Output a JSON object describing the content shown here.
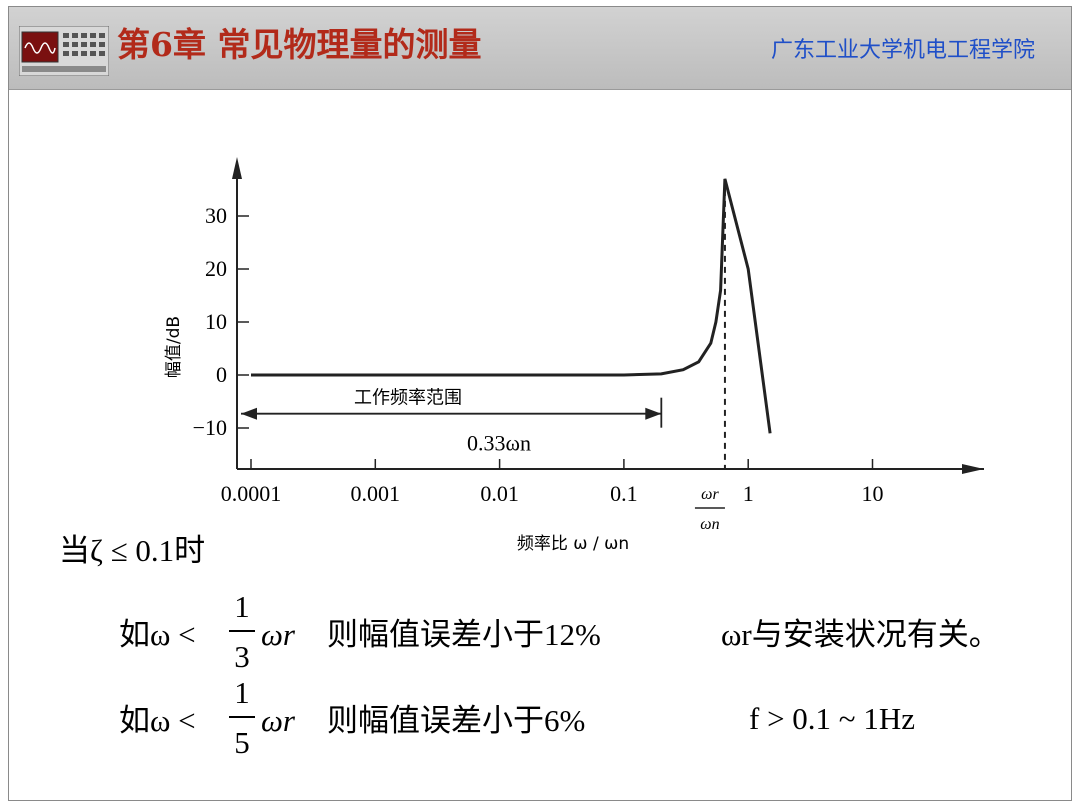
{
  "header": {
    "title": "第6章 常见物理量的测量",
    "school": "广东工业大学机电工程学院"
  },
  "chart_data": {
    "type": "line",
    "title": "",
    "xlabel": "频率比 ω / ωn",
    "ylabel": "幅值/dB",
    "x_scale": "log",
    "xlim": [
      0.0001,
      20
    ],
    "ylim": [
      -15,
      40
    ],
    "x_ticks": [
      {
        "v": 0.0001,
        "label": "0.0001"
      },
      {
        "v": 0.001,
        "label": "0.001"
      },
      {
        "v": 0.01,
        "label": "0.01"
      },
      {
        "v": 0.1,
        "label": "0.1"
      },
      {
        "v": 1,
        "label": "1"
      },
      {
        "v": 10,
        "label": "10"
      }
    ],
    "y_ticks": [
      {
        "v": 30,
        "label": "30"
      },
      {
        "v": 20,
        "label": "20"
      },
      {
        "v": 10,
        "label": "10"
      },
      {
        "v": 0,
        "label": "0"
      },
      {
        "v": -10,
        "label": "−10"
      }
    ],
    "series": [
      {
        "points": [
          [
            0.0001,
            0
          ],
          [
            0.1,
            0
          ],
          [
            0.2,
            0.2
          ],
          [
            0.3,
            1
          ],
          [
            0.4,
            2.5
          ],
          [
            0.5,
            6
          ],
          [
            0.55,
            10
          ],
          [
            0.6,
            16
          ],
          [
            0.65,
            37
          ],
          [
            1.0,
            20
          ],
          [
            1.5,
            -11
          ]
        ]
      }
    ],
    "annotations": {
      "range_label": "工作频率范围",
      "range_value": "0.33ωn",
      "resonance_num": "ωr",
      "resonance_den": "ωn"
    }
  },
  "body": {
    "condition": "当ζ ≤ 0.1时",
    "line1_prefix": "如ω <",
    "line1_num": "1",
    "line1_den": "3",
    "line1_var": "ωr",
    "line1_text": "则幅值误差小于12%",
    "line2_prefix": "如ω <",
    "line2_num": "1",
    "line2_den": "5",
    "line2_var": "ωr",
    "line2_text": "则幅值误差小于6%",
    "note1": "ωr与安装状况有关。",
    "note2": "f > 0.1 ~ 1Hz"
  }
}
